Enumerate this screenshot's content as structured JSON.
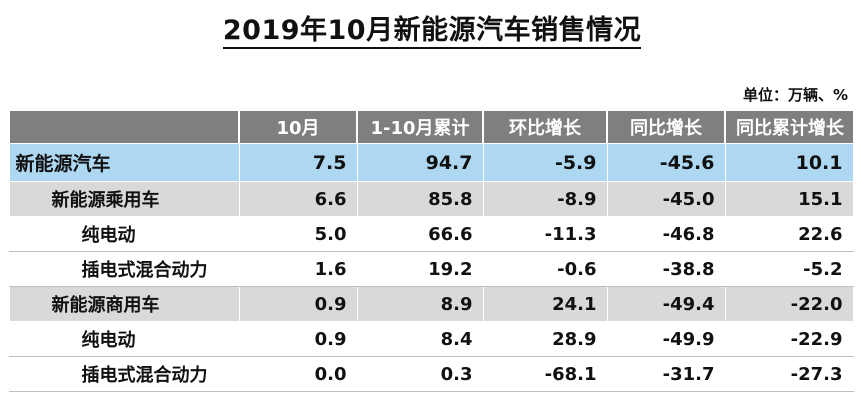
{
  "title": "2019年10月新能源汽车销售情况",
  "unit_note": "单位：万辆、%",
  "columns": [
    "",
    "10月",
    "1-10月累计",
    "环比增长",
    "同比增长",
    "同比累计增长"
  ],
  "rows": [
    {
      "level": 0,
      "name": "新能源汽车",
      "values": [
        "7.5",
        "94.7",
        "-5.9",
        "-45.6",
        "10.1"
      ]
    },
    {
      "level": 1,
      "name": "新能源乘用车",
      "values": [
        "6.6",
        "85.8",
        "-8.9",
        "-45.0",
        "15.1"
      ]
    },
    {
      "level": 2,
      "name": "纯电动",
      "values": [
        "5.0",
        "66.6",
        "-11.3",
        "-46.8",
        "22.6"
      ]
    },
    {
      "level": 2,
      "name": "插电式混合动力",
      "values": [
        "1.6",
        "19.2",
        "-0.6",
        "-38.8",
        "-5.2"
      ]
    },
    {
      "level": 1,
      "name": "新能源商用车",
      "values": [
        "0.9",
        "8.9",
        "24.1",
        "-49.4",
        "-22.0"
      ]
    },
    {
      "level": 2,
      "name": "纯电动",
      "values": [
        "0.9",
        "8.4",
        "28.9",
        "-49.9",
        "-22.9"
      ]
    },
    {
      "level": 2,
      "name": "插电式混合动力",
      "values": [
        "0.0",
        "0.3",
        "-68.1",
        "-31.7",
        "-27.3"
      ]
    }
  ],
  "colors": {
    "header_bg": "#7f7f7f",
    "total_row_bg": "#aed8f2",
    "subtotal_row_bg": "#d9d9d9"
  }
}
